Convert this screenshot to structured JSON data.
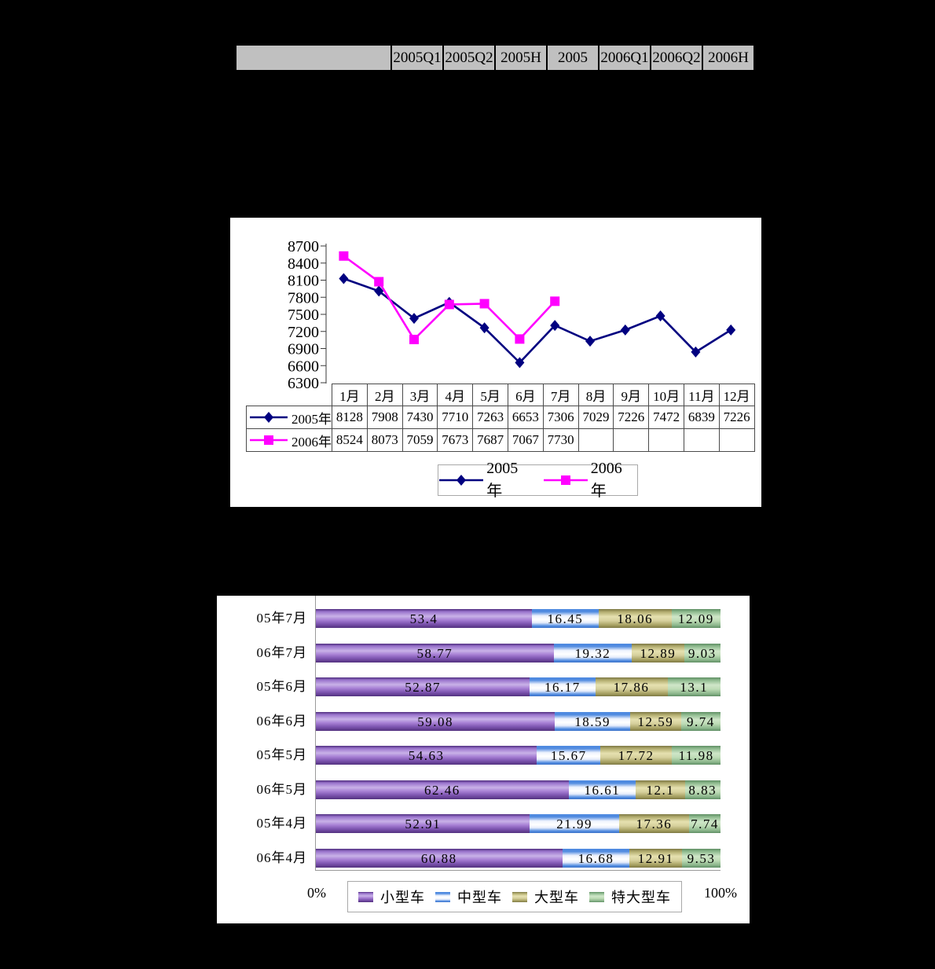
{
  "header_table": {
    "columns": [
      "",
      "2005Q1",
      "2005Q2",
      "2005H",
      "2005",
      "2006Q1",
      "2006Q2",
      "2006H"
    ],
    "cell_background": "#C0C0C0"
  },
  "chart_data": [
    {
      "type": "line",
      "x": [
        "1月",
        "2月",
        "3月",
        "4月",
        "5月",
        "6月",
        "7月",
        "8月",
        "9月",
        "10月",
        "11月",
        "12月"
      ],
      "y_ticks": [
        8700,
        8400,
        8100,
        7800,
        7500,
        7200,
        6900,
        6600,
        6300
      ],
      "ylim": [
        6300,
        8700
      ],
      "grid": false,
      "legend_position": "bottom",
      "series": [
        {
          "name": "2005年",
          "color": "#000080",
          "marker": "diamond",
          "values": [
            8128,
            7908,
            7430,
            7710,
            7263,
            6653,
            7306,
            7029,
            7226,
            7472,
            6839,
            7226
          ]
        },
        {
          "name": "2006年",
          "color": "#FF00FF",
          "marker": "square",
          "values": [
            8524,
            8073,
            7059,
            7673,
            7687,
            7067,
            7730,
            null,
            null,
            null,
            null,
            null
          ]
        }
      ]
    },
    {
      "type": "bar",
      "orientation": "horizontal",
      "stacked": true,
      "categories": [
        "05年7月",
        "06年7月",
        "05年6月",
        "06年6月",
        "05年5月",
        "06年5月",
        "05年4月",
        "06年4月"
      ],
      "series": [
        {
          "name": "小型车",
          "color": "#9966CC",
          "values": [
            53.4,
            58.77,
            52.87,
            59.08,
            54.63,
            62.46,
            52.91,
            60.88
          ]
        },
        {
          "name": "中型车",
          "color": "#4F8AE0",
          "values": [
            16.45,
            19.32,
            16.17,
            18.59,
            15.67,
            16.61,
            21.99,
            16.68
          ]
        },
        {
          "name": "大型车",
          "color": "#CDC87F",
          "values": [
            18.06,
            12.89,
            17.86,
            12.59,
            17.72,
            12.1,
            17.36,
            12.91
          ]
        },
        {
          "name": "特大型车",
          "color": "#9FC79A",
          "values": [
            12.09,
            9.03,
            13.1,
            9.74,
            11.98,
            8.83,
            7.74,
            9.53
          ]
        }
      ],
      "xlim": [
        0,
        100
      ],
      "x_min_label": "0%",
      "x_max_label": "100%",
      "legend_position": "bottom"
    }
  ]
}
